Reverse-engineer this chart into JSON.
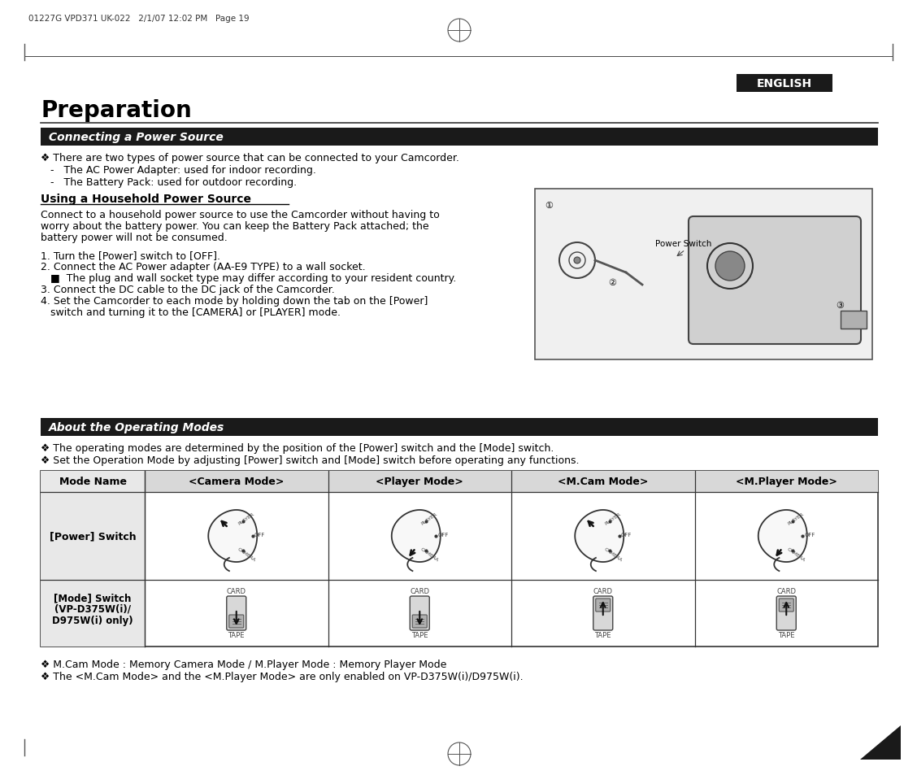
{
  "bg_color": "#ffffff",
  "header_text": "01227G VPD371 UK-022   2/1/07 12:02 PM   Page 19",
  "english_label": "ENGLISH",
  "english_bg": "#1a1a1a",
  "english_fg": "#ffffff",
  "title": "Preparation",
  "section1_title": "Connecting a Power Source",
  "section1_bg": "#1a1a1a",
  "section1_fg": "#ffffff",
  "section1_bullets": [
    "❖ There are two types of power source that can be connected to your Camcorder.",
    "   -   The AC Power Adapter: used for indoor recording.",
    "   -   The Battery Pack: used for outdoor recording."
  ],
  "subsection_title": "Using a Household Power Source",
  "subsection_text": "Connect to a household power source to use the Camcorder without having to\nworry about the battery power. You can keep the Battery Pack attached; the\nbattery power will not be consumed.",
  "steps": [
    "1. Turn the [Power] switch to [OFF].",
    "2. Connect the AC Power adapter (AA-E9 TYPE) to a wall socket.",
    "   ■  The plug and wall socket type may differ according to your resident country.",
    "3. Connect the DC cable to the DC jack of the Camcorder.",
    "4. Set the Camcorder to each mode by holding down the tab on the [Power]",
    "   switch and turning it to the [CAMERA] or [PLAYER] mode."
  ],
  "section2_title": "About the Operating Modes",
  "section2_bg": "#1a1a1a",
  "section2_fg": "#ffffff",
  "section2_bullets": [
    "❖ The operating modes are determined by the position of the [Power] switch and the [Mode] switch.",
    "❖ Set the Operation Mode by adjusting [Power] switch and [Mode] switch before operating any functions."
  ],
  "table_headers": [
    "Mode Name",
    "<Camera Mode>",
    "<Player Mode>",
    "<M.Cam Mode>",
    "<M.Player Mode>"
  ],
  "table_row1": "[Power] Switch",
  "table_row2_lines": [
    "[Mode] Switch",
    "(VP-D375W(i)/",
    "D975W(i) only)"
  ],
  "footer_bullets": [
    "❖ M.Cam Mode : Memory Camera Mode / M.Player Mode : Memory Player Mode",
    "❖ The <M.Cam Mode> and the <M.Player Mode> are only enabled on VP-D375W(i)/D975W(i)."
  ],
  "page_num": "19",
  "power_switch_label": "Power Switch"
}
